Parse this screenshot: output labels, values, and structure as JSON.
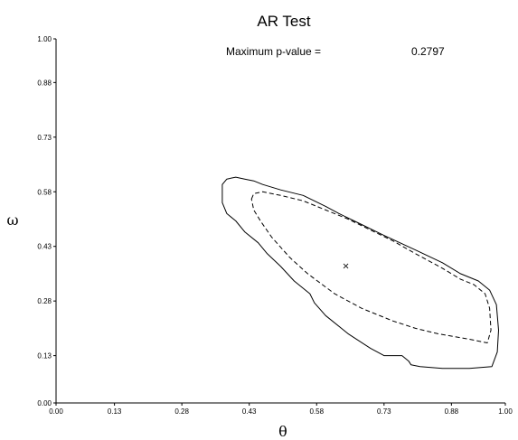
{
  "chart_data": {
    "type": "line",
    "title": "AR Test",
    "annotation_label": "Maximum p-value =",
    "annotation_value": "0.2797",
    "xlabel": "θ",
    "ylabel": "ω",
    "xlim": [
      0.0,
      1.0
    ],
    "ylim": [
      0.0,
      1.0
    ],
    "x_ticks": [
      0.0,
      0.13,
      0.28,
      0.43,
      0.58,
      0.73,
      0.88,
      1.0
    ],
    "y_ticks": [
      0.0,
      0.13,
      0.28,
      0.43,
      0.58,
      0.73,
      0.88,
      1.0
    ],
    "x_tick_labels": [
      "0.00",
      "0.13",
      "0.28",
      "0.43",
      "0.58",
      "0.73",
      "0.88",
      "1.00"
    ],
    "y_tick_labels": [
      "0.00",
      "0.13",
      "0.28",
      "0.43",
      "0.58",
      "0.73",
      "0.88",
      "1.00"
    ],
    "grid": false,
    "series": [
      {
        "style": "solid",
        "color": "#000000",
        "closed": true,
        "points": [
          [
            0.37,
            0.6
          ],
          [
            0.38,
            0.615
          ],
          [
            0.4,
            0.62
          ],
          [
            0.42,
            0.615
          ],
          [
            0.44,
            0.61
          ],
          [
            0.46,
            0.6
          ],
          [
            0.5,
            0.585
          ],
          [
            0.55,
            0.57
          ],
          [
            0.6,
            0.54
          ],
          [
            0.63,
            0.52
          ],
          [
            0.68,
            0.49
          ],
          [
            0.73,
            0.46
          ],
          [
            0.8,
            0.42
          ],
          [
            0.86,
            0.385
          ],
          [
            0.9,
            0.355
          ],
          [
            0.94,
            0.335
          ],
          [
            0.965,
            0.31
          ],
          [
            0.98,
            0.27
          ],
          [
            0.985,
            0.2
          ],
          [
            0.982,
            0.14
          ],
          [
            0.97,
            0.1
          ],
          [
            0.92,
            0.095
          ],
          [
            0.86,
            0.095
          ],
          [
            0.81,
            0.1
          ],
          [
            0.79,
            0.105
          ],
          [
            0.785,
            0.115
          ],
          [
            0.77,
            0.13
          ],
          [
            0.73,
            0.13
          ],
          [
            0.7,
            0.15
          ],
          [
            0.65,
            0.19
          ],
          [
            0.6,
            0.24
          ],
          [
            0.575,
            0.275
          ],
          [
            0.565,
            0.3
          ],
          [
            0.53,
            0.335
          ],
          [
            0.5,
            0.375
          ],
          [
            0.47,
            0.41
          ],
          [
            0.45,
            0.44
          ],
          [
            0.42,
            0.47
          ],
          [
            0.4,
            0.5
          ],
          [
            0.38,
            0.52
          ],
          [
            0.37,
            0.55
          ],
          [
            0.37,
            0.6
          ]
        ]
      },
      {
        "style": "dashed",
        "color": "#000000",
        "closed": true,
        "points": [
          [
            0.435,
            0.56
          ],
          [
            0.44,
            0.575
          ],
          [
            0.46,
            0.58
          ],
          [
            0.5,
            0.57
          ],
          [
            0.55,
            0.555
          ],
          [
            0.6,
            0.53
          ],
          [
            0.65,
            0.505
          ],
          [
            0.7,
            0.475
          ],
          [
            0.75,
            0.445
          ],
          [
            0.8,
            0.41
          ],
          [
            0.86,
            0.37
          ],
          [
            0.9,
            0.34
          ],
          [
            0.93,
            0.325
          ],
          [
            0.955,
            0.3
          ],
          [
            0.965,
            0.26
          ],
          [
            0.968,
            0.2
          ],
          [
            0.96,
            0.165
          ],
          [
            0.92,
            0.175
          ],
          [
            0.85,
            0.19
          ],
          [
            0.8,
            0.205
          ],
          [
            0.75,
            0.225
          ],
          [
            0.68,
            0.26
          ],
          [
            0.62,
            0.3
          ],
          [
            0.56,
            0.355
          ],
          [
            0.52,
            0.4
          ],
          [
            0.48,
            0.455
          ],
          [
            0.455,
            0.5
          ],
          [
            0.44,
            0.53
          ],
          [
            0.435,
            0.56
          ]
        ]
      }
    ],
    "marker": {
      "symbol": "×",
      "x": 0.645,
      "y": 0.375
    }
  }
}
